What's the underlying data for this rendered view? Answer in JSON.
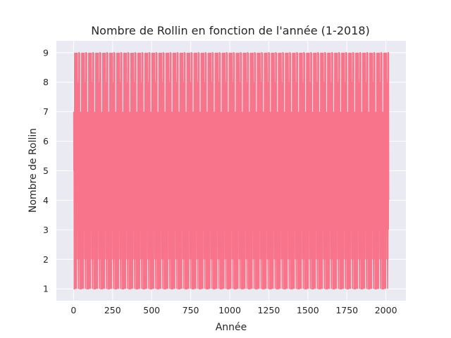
{
  "chart_data": {
    "type": "line",
    "title": "Nombre de Rollin en fonction de l'année (1-2018)",
    "xlabel": "Année",
    "ylabel": "Nombre de Rollin",
    "xlim": [
      -110,
      2128
    ],
    "ylim": [
      0.6,
      9.4
    ],
    "x_ticks": [
      0,
      250,
      500,
      750,
      1000,
      1250,
      1500,
      1750,
      2000
    ],
    "y_ticks": [
      1,
      2,
      3,
      4,
      5,
      6,
      7,
      8,
      9
    ],
    "grid": true,
    "series": [
      {
        "color": "#f7748a",
        "x_range": [
          1,
          2018
        ],
        "values_pattern": "digit per year, oscillating between 1 and 9",
        "values_sample": [
          1,
          9,
          2,
          8,
          3,
          9,
          1,
          7,
          4,
          9,
          2,
          6,
          1,
          8,
          5,
          3,
          9,
          1,
          4,
          7,
          2,
          9,
          6,
          1,
          3,
          8,
          9,
          2,
          5,
          1
        ]
      }
    ],
    "colors": {
      "background": "#eaeaf2",
      "grid": "#ffffff",
      "line": "#f7748a"
    }
  }
}
